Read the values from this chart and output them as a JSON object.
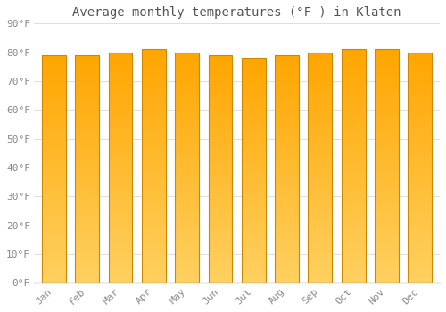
{
  "months": [
    "Jan",
    "Feb",
    "Mar",
    "Apr",
    "May",
    "Jun",
    "Jul",
    "Aug",
    "Sep",
    "Oct",
    "Nov",
    "Dec"
  ],
  "values": [
    79,
    79,
    80,
    81,
    80,
    79,
    78,
    79,
    80,
    81,
    81,
    80
  ],
  "title": "Average monthly temperatures (°F ) in Klaten",
  "ylim": [
    0,
    90
  ],
  "yticks": [
    0,
    10,
    20,
    30,
    40,
    50,
    60,
    70,
    80,
    90
  ],
  "bar_color_top": "#FFA500",
  "bar_color_bottom": "#FFD060",
  "bar_edge_color": "#CC8800",
  "background_color": "#FFFFFF",
  "plot_bg_color": "#FFFFFF",
  "grid_color": "#E0E0E0",
  "title_fontsize": 10,
  "tick_fontsize": 8,
  "bar_width": 0.72
}
